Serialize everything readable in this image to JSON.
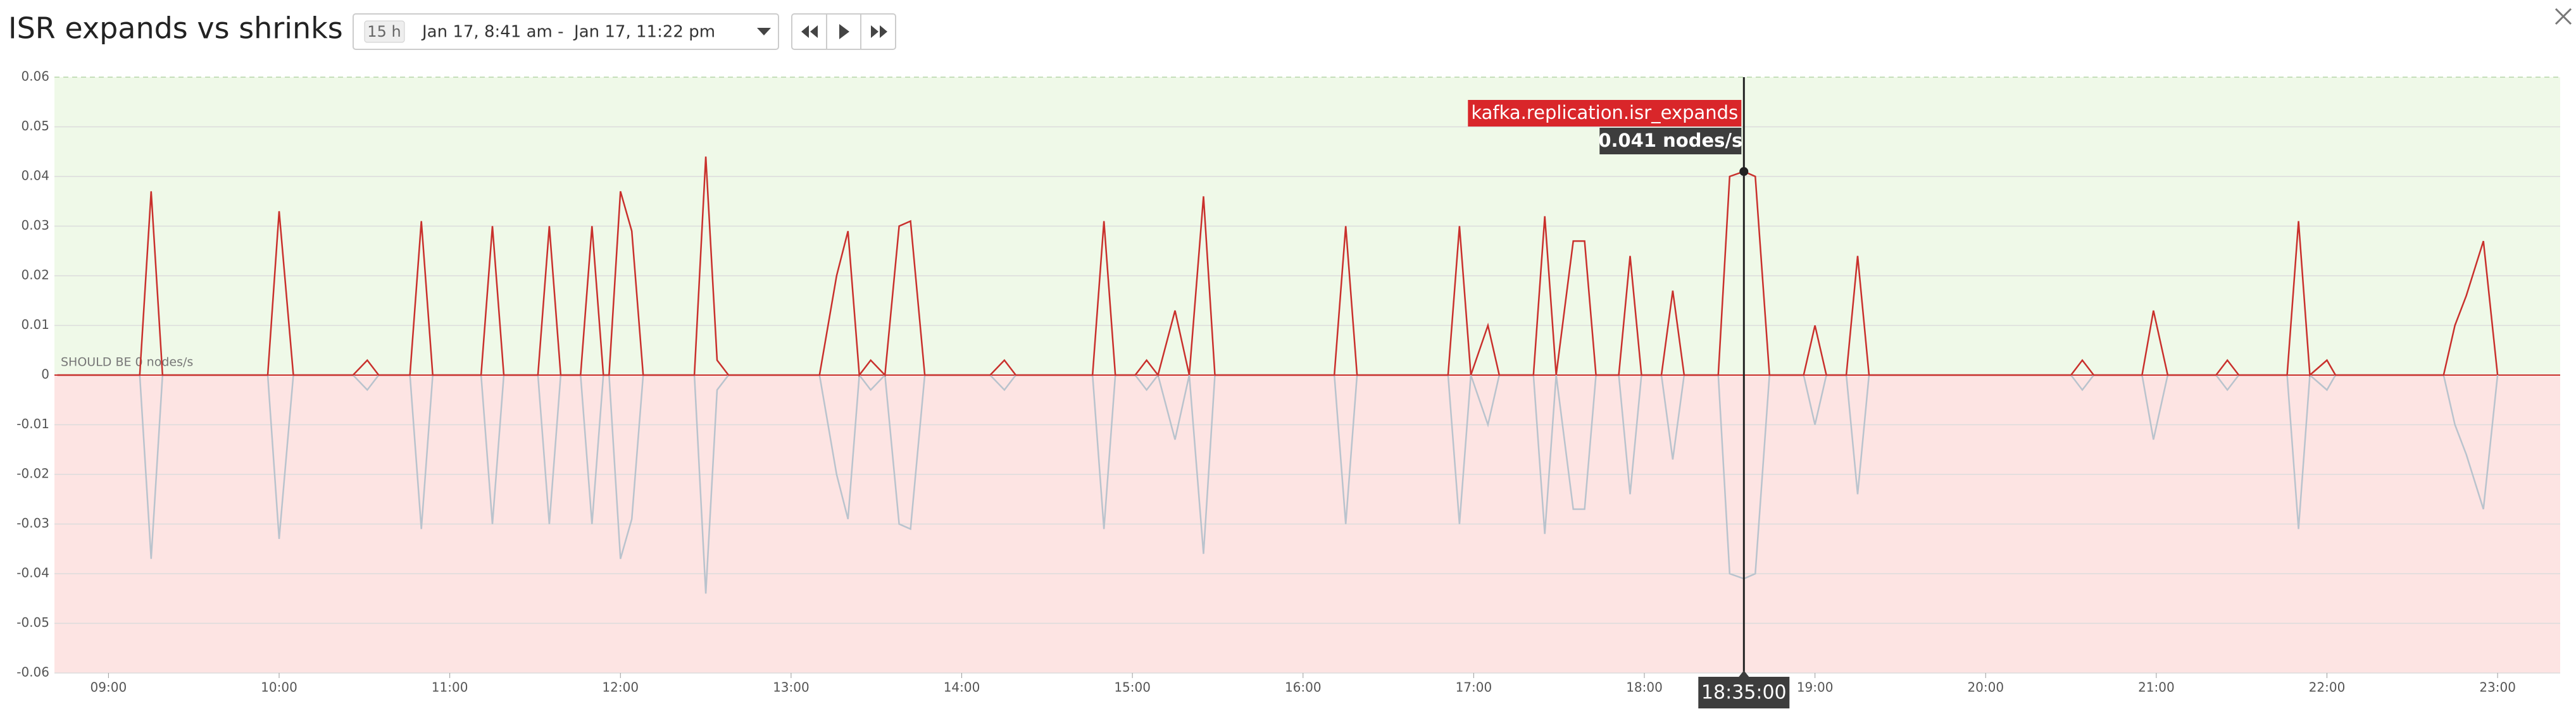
{
  "header": {
    "title": "ISR expands vs shrinks",
    "span": "15 h",
    "range": "Jan 17, 8:41 am -  Jan 17, 11:22 pm"
  },
  "chart_data": {
    "type": "line",
    "annotation": "SHOULD BE 0 nodes/s",
    "xlim": [
      "08:41",
      "23:22"
    ],
    "xticks": [
      "09:00",
      "10:00",
      "11:00",
      "12:00",
      "13:00",
      "14:00",
      "15:00",
      "16:00",
      "17:00",
      "18:00",
      "19:00",
      "20:00",
      "21:00",
      "22:00",
      "23:00"
    ],
    "ylim": [
      -0.06,
      0.06
    ],
    "yticks": [
      0.06,
      0.05,
      0.04,
      0.03,
      0.02,
      0.01,
      0,
      -0.01,
      -0.02,
      -0.03,
      -0.04,
      -0.05,
      -0.06
    ],
    "grid": true,
    "x": [
      "08:42",
      "09:11",
      "09:15",
      "09:19",
      "09:56",
      "10:00",
      "10:05",
      "10:26",
      "10:31",
      "10:35",
      "10:46",
      "10:50",
      "10:54",
      "11:11",
      "11:15",
      "11:19",
      "11:31",
      "11:35",
      "11:39",
      "11:46",
      "11:50",
      "11:54",
      "11:56",
      "12:00",
      "12:04",
      "12:08",
      "12:26",
      "12:30",
      "12:34",
      "12:38",
      "13:10",
      "13:16",
      "13:20",
      "13:24",
      "13:28",
      "13:33",
      "13:38",
      "13:42",
      "13:47",
      "14:10",
      "14:15",
      "14:19",
      "14:46",
      "14:50",
      "14:54",
      "15:01",
      "15:05",
      "15:09",
      "15:15",
      "15:20",
      "15:25",
      "15:29",
      "16:11",
      "16:15",
      "16:19",
      "16:51",
      "16:55",
      "16:59",
      "17:05",
      "17:09",
      "17:21",
      "17:25",
      "17:29",
      "17:35",
      "17:39",
      "17:43",
      "17:51",
      "17:55",
      "17:59",
      "18:06",
      "18:10",
      "18:14",
      "18:26",
      "18:30",
      "18:35",
      "18:39",
      "18:44",
      "18:56",
      "19:00",
      "19:04",
      "19:11",
      "19:15",
      "19:19",
      "20:30",
      "20:34",
      "20:38",
      "20:55",
      "20:59",
      "21:04",
      "21:21",
      "21:25",
      "21:29",
      "21:46",
      "21:50",
      "21:54",
      "22:00",
      "22:03",
      "22:41",
      "22:45",
      "22:49",
      "22:55",
      "23:00"
    ],
    "series": [
      {
        "name": "kafka.replication.isr_expands",
        "color": "#c9302c",
        "values": [
          0,
          0,
          0.037,
          0,
          0,
          0.033,
          0,
          0,
          0.003,
          0,
          0,
          0.031,
          0,
          0,
          0.03,
          0,
          0,
          0.03,
          0,
          0,
          0.03,
          0,
          0,
          0.037,
          0.029,
          0,
          0,
          0.044,
          0.003,
          0,
          0,
          0.02,
          0.029,
          0,
          0.003,
          0,
          0.03,
          0.031,
          0,
          0,
          0.003,
          0,
          0,
          0.031,
          0,
          0,
          0.003,
          0,
          0.013,
          0,
          0.036,
          0,
          0,
          0.03,
          0,
          0,
          0.03,
          0,
          0.01,
          0,
          0,
          0.032,
          0,
          0.027,
          0.027,
          0,
          0,
          0.024,
          0,
          0,
          0.017,
          0,
          0,
          0.04,
          0.041,
          0.04,
          0,
          0,
          0.01,
          0,
          0,
          0.024,
          0,
          0,
          0.003,
          0,
          0,
          0.013,
          0,
          0,
          0.003,
          0,
          0,
          0.031,
          0,
          0.003,
          0,
          0,
          0.01,
          0.016,
          0.027,
          0
        ]
      },
      {
        "color": "#b9c3cd",
        "values": [
          0,
          0,
          -0.037,
          0,
          0,
          -0.033,
          0,
          0,
          -0.003,
          0,
          0,
          -0.031,
          0,
          0,
          -0.03,
          0,
          0,
          -0.03,
          0,
          0,
          -0.03,
          0,
          0,
          -0.037,
          -0.029,
          0,
          0,
          -0.044,
          -0.003,
          0,
          0,
          -0.02,
          -0.029,
          0,
          -0.003,
          0,
          -0.03,
          -0.031,
          0,
          0,
          -0.003,
          0,
          0,
          -0.031,
          0,
          0,
          -0.003,
          0,
          -0.013,
          0,
          -0.036,
          0,
          0,
          -0.03,
          0,
          0,
          -0.03,
          0,
          -0.01,
          0,
          0,
          -0.032,
          0,
          -0.027,
          -0.027,
          0,
          0,
          -0.024,
          0,
          0,
          -0.017,
          0,
          0,
          -0.04,
          -0.041,
          -0.04,
          0,
          0,
          -0.01,
          0,
          0,
          -0.024,
          0,
          0,
          -0.003,
          0,
          0,
          -0.013,
          0,
          0,
          -0.003,
          0,
          0,
          -0.031,
          0,
          -0.003,
          0,
          0,
          -0.01,
          -0.016,
          -0.027,
          0
        ]
      }
    ],
    "tooltip": {
      "time": "18:35:00",
      "value": 0.041,
      "value_label": "0.041 nodes/s"
    }
  }
}
